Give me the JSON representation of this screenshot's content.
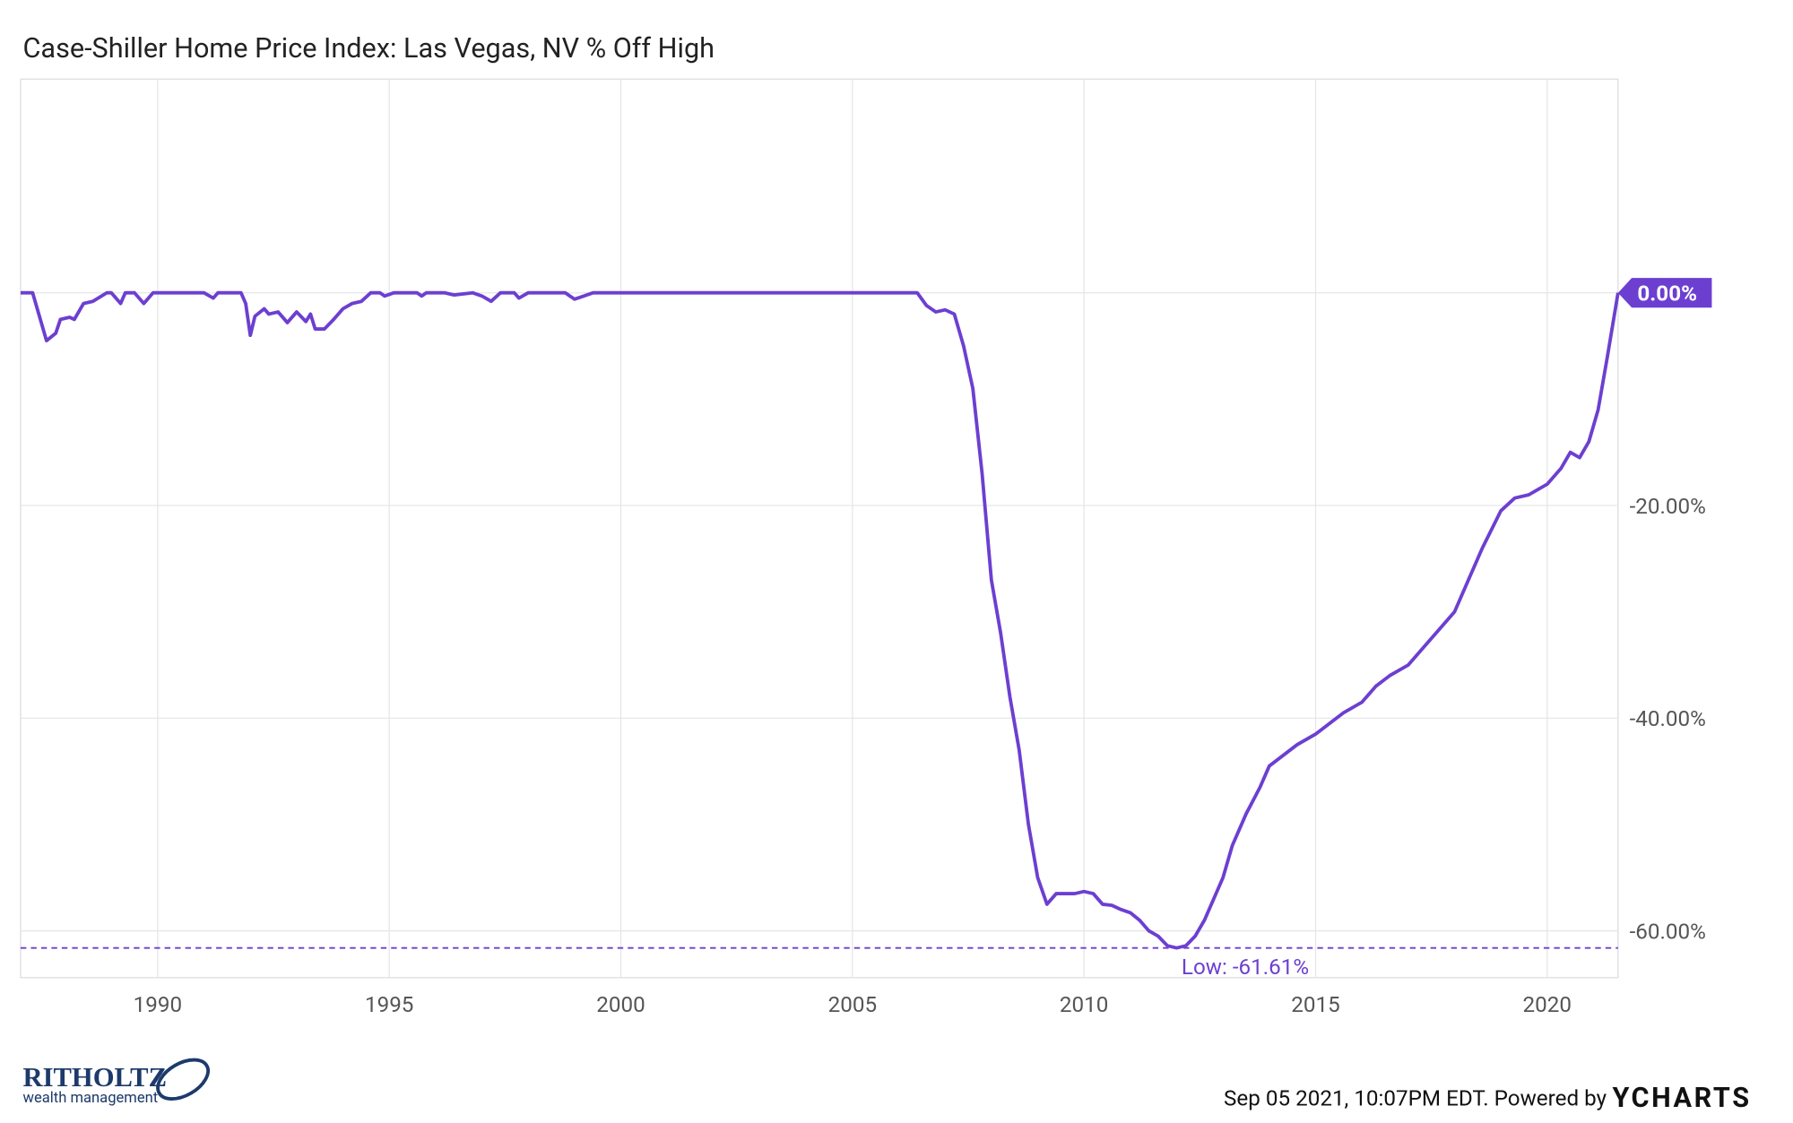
{
  "chart_data": {
    "type": "line",
    "title": "Case-Shiller Home Price Index: Las Vegas, NV % Off High",
    "x": [
      1987.04,
      1987.3,
      1987.5,
      1987.6,
      1987.8,
      1987.9,
      1988.1,
      1988.2,
      1988.4,
      1988.6,
      1988.9,
      1989.0,
      1989.2,
      1989.3,
      1989.5,
      1989.7,
      1989.9,
      1990.5,
      1991.0,
      1991.2,
      1991.3,
      1991.8,
      1991.9,
      1992.0,
      1992.1,
      1992.3,
      1992.4,
      1992.6,
      1992.8,
      1993.0,
      1993.2,
      1993.3,
      1993.4,
      1993.6,
      1993.8,
      1994.0,
      1994.2,
      1994.4,
      1994.6,
      1994.8,
      1994.9,
      1995.1,
      1995.6,
      1995.7,
      1995.8,
      1996.2,
      1996.4,
      1996.8,
      1997.0,
      1997.2,
      1997.4,
      1997.7,
      1997.8,
      1998.0,
      1998.8,
      1999.0,
      1999.2,
      1999.4,
      2000.0,
      2006.4,
      2006.6,
      2006.8,
      2007.0,
      2007.2,
      2007.4,
      2007.6,
      2007.8,
      2008.0,
      2008.2,
      2008.4,
      2008.6,
      2008.8,
      2009.0,
      2009.2,
      2009.4,
      2009.6,
      2009.8,
      2010.0,
      2010.2,
      2010.4,
      2010.6,
      2010.8,
      2011.0,
      2011.2,
      2011.4,
      2011.6,
      2011.8,
      2012.0,
      2012.2,
      2012.4,
      2012.6,
      2012.8,
      2013.0,
      2013.2,
      2013.5,
      2013.8,
      2014.0,
      2014.3,
      2014.6,
      2015.0,
      2015.3,
      2015.6,
      2016.0,
      2016.3,
      2016.6,
      2017.0,
      2017.3,
      2017.6,
      2018.0,
      2018.3,
      2018.6,
      2019.0,
      2019.3,
      2019.6,
      2020.0,
      2020.3,
      2020.5,
      2020.7,
      2020.9,
      2021.1,
      2021.3,
      2021.53
    ],
    "series": [
      {
        "name": "Case-Shiller Home Price Index: Las Vegas, NV % Off High",
        "color": "#6c3fd1",
        "values": [
          0,
          0,
          -3,
          -4.5,
          -3.8,
          -2.5,
          -2.3,
          -2.5,
          -1,
          -0.8,
          0,
          0,
          -1,
          0,
          0,
          -1,
          0,
          0,
          0,
          -0.5,
          0,
          0,
          -1,
          -4,
          -2.2,
          -1.5,
          -2,
          -1.8,
          -2.8,
          -1.8,
          -2.7,
          -2,
          -3.4,
          -3.4,
          -2.5,
          -1.5,
          -1,
          -0.8,
          0,
          0,
          -0.3,
          0,
          0,
          -0.3,
          0,
          0,
          -0.2,
          0,
          -0.3,
          -0.8,
          0,
          0,
          -0.5,
          0,
          0,
          -0.6,
          -0.3,
          0,
          0,
          0,
          -1.2,
          -1.8,
          -1.6,
          -2,
          -5,
          -9,
          -17,
          -27,
          -32,
          -38,
          -43,
          -50,
          -55,
          -57.5,
          -56.5,
          -56.5,
          -56.5,
          -56.3,
          -56.5,
          -57.5,
          -57.6,
          -58,
          -58.3,
          -59,
          -60,
          -60.5,
          -61.4,
          -61.61,
          -61.4,
          -60.5,
          -59,
          -57,
          -55,
          -52,
          -49,
          -46.5,
          -44.5,
          -43.5,
          -42.5,
          -41.5,
          -40.5,
          -39.5,
          -38.5,
          -37,
          -36,
          -35,
          -33.5,
          -32,
          -30,
          -27,
          -24,
          -20.5,
          -19.3,
          -19,
          -18,
          -16.5,
          -15,
          -15.5,
          -14,
          -11,
          -6,
          0
        ]
      }
    ],
    "last_value": {
      "value": 0,
      "label": "0.00%"
    },
    "low": {
      "value": -61.61,
      "label": "Low: -61.61%"
    },
    "xlim": [
      1987.04,
      2021.53
    ],
    "xticks": [
      1990,
      1995,
      2000,
      2005,
      2010,
      2015,
      2020
    ],
    "ylim": [
      -64.4,
      20.1
    ],
    "yticks": [
      {
        "value": -60,
        "label": "-60.00%"
      },
      {
        "value": -40,
        "label": "-40.00%"
      },
      {
        "value": -20,
        "label": "-20.00%"
      },
      {
        "value": 0,
        "label": "0.00%"
      }
    ],
    "grid": true
  },
  "footer": {
    "timestamp": "Sep 05 2021, 10:07PM EDT. Powered by",
    "brand": "YCHARTS",
    "logo_name": "RITHOLTZ",
    "logo_tagline": "wealth management"
  }
}
